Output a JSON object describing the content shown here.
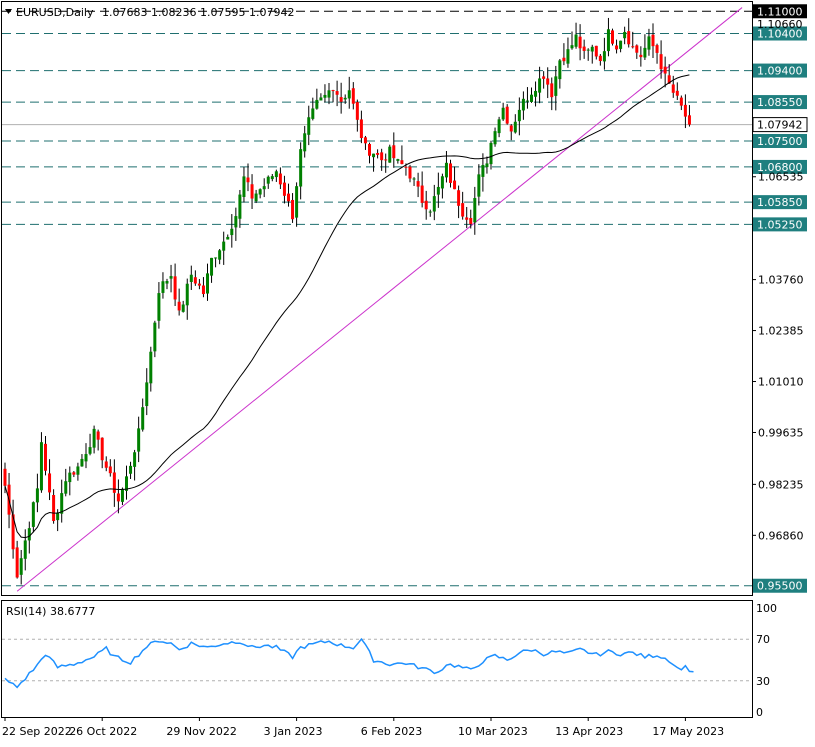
{
  "header": {
    "symbol": "EURUSD,Daily",
    "ohlc": "1.07683 1.08236 1.07595 1.07942"
  },
  "colors": {
    "bull": "#008000",
    "bear": "#ff0000",
    "wick": "#000000",
    "hline": "#1f6f6f",
    "label_bg": "#1f7f7f",
    "label_text": "#ffffff",
    "trendline": "#cc33cc",
    "ma": "#000000",
    "rsi": "#1e90ff",
    "frame": "#000000",
    "current_price_bg": "#ffffff"
  },
  "chart_data": [
    {
      "type": "candlestick",
      "title": "EURUSD,Daily",
      "ylim": [
        0.9525,
        1.1125
      ],
      "y_ticks": [
        "1.06535",
        "1.03760",
        "1.02385",
        "1.01010",
        "0.99635",
        "0.98235",
        "0.96860"
      ],
      "x_ticks": [
        {
          "index": 0,
          "label": "22 Sep 2022"
        },
        {
          "index": 24,
          "label": "26 Oct 2022"
        },
        {
          "index": 48,
          "label": "29 Nov 2022"
        },
        {
          "index": 72,
          "label": "3 Jan 2023"
        },
        {
          "index": 96,
          "label": "6 Feb 2023"
        },
        {
          "index": 120,
          "label": "10 Mar 2023"
        },
        {
          "index": 144,
          "label": "13 Apr 2023"
        },
        {
          "index": 168,
          "label": "17 May 2023"
        }
      ],
      "horizontal_levels": [
        {
          "price": 1.11,
          "label": "1.11000",
          "highlight": true
        },
        {
          "price": 1.104,
          "label": "1.10400"
        },
        {
          "price": 1.094,
          "label": "1.09400"
        },
        {
          "price": 1.0855,
          "label": "1.08550"
        },
        {
          "price": 1.075,
          "label": "1.07500"
        },
        {
          "price": 1.068,
          "label": "1.06800"
        },
        {
          "price": 1.0585,
          "label": "1.05850"
        },
        {
          "price": 1.0525,
          "label": "1.05250"
        },
        {
          "price": 0.955,
          "label": "0.95500"
        }
      ],
      "current_price": {
        "price": 1.07942,
        "label": "1.07942"
      },
      "hidden_label": "1.10660",
      "trendline": {
        "from": {
          "index": 3,
          "price": 0.9535
        },
        "to": {
          "index": 182,
          "price": 1.111
        }
      },
      "anchors": [
        {
          "i": 0,
          "c": 0.982
        },
        {
          "i": 3,
          "c": 0.958
        },
        {
          "i": 8,
          "c": 0.981
        },
        {
          "i": 9,
          "c": 0.994
        },
        {
          "i": 12,
          "c": 0.972
        },
        {
          "i": 15,
          "c": 0.984
        },
        {
          "i": 18,
          "c": 0.987
        },
        {
          "i": 22,
          "c": 0.996
        },
        {
          "i": 26,
          "c": 0.984
        },
        {
          "i": 28,
          "c": 0.978
        },
        {
          "i": 30,
          "c": 0.984
        },
        {
          "i": 33,
          "c": 0.996
        },
        {
          "i": 36,
          "c": 1.018
        },
        {
          "i": 38,
          "c": 1.035
        },
        {
          "i": 41,
          "c": 1.039
        },
        {
          "i": 43,
          "c": 1.028
        },
        {
          "i": 46,
          "c": 1.039
        },
        {
          "i": 49,
          "c": 1.034
        },
        {
          "i": 51,
          "c": 1.043
        },
        {
          "i": 54,
          "c": 1.048
        },
        {
          "i": 57,
          "c": 1.055
        },
        {
          "i": 59,
          "c": 1.065
        },
        {
          "i": 61,
          "c": 1.06
        },
        {
          "i": 64,
          "c": 1.063
        },
        {
          "i": 67,
          "c": 1.067
        },
        {
          "i": 69,
          "c": 1.061
        },
        {
          "i": 71,
          "c": 1.055
        },
        {
          "i": 73,
          "c": 1.072
        },
        {
          "i": 75,
          "c": 1.08
        },
        {
          "i": 77,
          "c": 1.085
        },
        {
          "i": 79,
          "c": 1.087
        },
        {
          "i": 81,
          "c": 1.09
        },
        {
          "i": 83,
          "c": 1.086
        },
        {
          "i": 85,
          "c": 1.089
        },
        {
          "i": 87,
          "c": 1.08
        },
        {
          "i": 89,
          "c": 1.073
        },
        {
          "i": 91,
          "c": 1.072
        },
        {
          "i": 93,
          "c": 1.07
        },
        {
          "i": 95,
          "c": 1.072
        },
        {
          "i": 97,
          "c": 1.069
        },
        {
          "i": 99,
          "c": 1.068
        },
        {
          "i": 101,
          "c": 1.064
        },
        {
          "i": 103,
          "c": 1.059
        },
        {
          "i": 105,
          "c": 1.057
        },
        {
          "i": 107,
          "c": 1.062
        },
        {
          "i": 109,
          "c": 1.068
        },
        {
          "i": 111,
          "c": 1.061
        },
        {
          "i": 113,
          "c": 1.056
        },
        {
          "i": 115,
          "c": 1.054
        },
        {
          "i": 117,
          "c": 1.065
        },
        {
          "i": 119,
          "c": 1.07
        },
        {
          "i": 121,
          "c": 1.079
        },
        {
          "i": 123,
          "c": 1.084
        },
        {
          "i": 125,
          "c": 1.078
        },
        {
          "i": 127,
          "c": 1.084
        },
        {
          "i": 129,
          "c": 1.087
        },
        {
          "i": 131,
          "c": 1.09
        },
        {
          "i": 133,
          "c": 1.093
        },
        {
          "i": 135,
          "c": 1.088
        },
        {
          "i": 137,
          "c": 1.097
        },
        {
          "i": 139,
          "c": 1.099
        },
        {
          "i": 141,
          "c": 1.103
        },
        {
          "i": 143,
          "c": 1.098
        },
        {
          "i": 145,
          "c": 1.1
        },
        {
          "i": 147,
          "c": 1.097
        },
        {
          "i": 149,
          "c": 1.104
        },
        {
          "i": 151,
          "c": 1.101
        },
        {
          "i": 153,
          "c": 1.105
        },
        {
          "i": 155,
          "c": 1.1
        },
        {
          "i": 157,
          "c": 1.098
        },
        {
          "i": 159,
          "c": 1.102
        },
        {
          "i": 161,
          "c": 1.099
        },
        {
          "i": 163,
          "c": 1.092
        },
        {
          "i": 165,
          "c": 1.088
        },
        {
          "i": 167,
          "c": 1.084
        },
        {
          "i": 169,
          "c": 1.0794
        }
      ]
    },
    {
      "type": "line",
      "title": "RSI(14) 38.6777",
      "ylim": [
        0,
        100
      ],
      "y_ticks": [
        "100",
        "70",
        "30",
        "0"
      ],
      "levels": [
        70,
        30
      ],
      "anchors": [
        {
          "i": 0,
          "v": 31
        },
        {
          "i": 3,
          "v": 24
        },
        {
          "i": 8,
          "v": 45
        },
        {
          "i": 10,
          "v": 56
        },
        {
          "i": 13,
          "v": 43
        },
        {
          "i": 17,
          "v": 46
        },
        {
          "i": 22,
          "v": 53
        },
        {
          "i": 25,
          "v": 61
        },
        {
          "i": 27,
          "v": 53
        },
        {
          "i": 31,
          "v": 48
        },
        {
          "i": 35,
          "v": 63
        },
        {
          "i": 38,
          "v": 69
        },
        {
          "i": 41,
          "v": 66
        },
        {
          "i": 43,
          "v": 60
        },
        {
          "i": 46,
          "v": 66
        },
        {
          "i": 50,
          "v": 62
        },
        {
          "i": 54,
          "v": 66
        },
        {
          "i": 58,
          "v": 68
        },
        {
          "i": 61,
          "v": 62
        },
        {
          "i": 64,
          "v": 64
        },
        {
          "i": 67,
          "v": 62
        },
        {
          "i": 71,
          "v": 53
        },
        {
          "i": 73,
          "v": 62
        },
        {
          "i": 77,
          "v": 66
        },
        {
          "i": 80,
          "v": 68
        },
        {
          "i": 83,
          "v": 64
        },
        {
          "i": 86,
          "v": 62
        },
        {
          "i": 88,
          "v": 70
        },
        {
          "i": 91,
          "v": 50
        },
        {
          "i": 95,
          "v": 46
        },
        {
          "i": 99,
          "v": 47
        },
        {
          "i": 103,
          "v": 42
        },
        {
          "i": 107,
          "v": 38
        },
        {
          "i": 109,
          "v": 46
        },
        {
          "i": 112,
          "v": 44
        },
        {
          "i": 115,
          "v": 40
        },
        {
          "i": 118,
          "v": 49
        },
        {
          "i": 121,
          "v": 54
        },
        {
          "i": 124,
          "v": 50
        },
        {
          "i": 127,
          "v": 57
        },
        {
          "i": 130,
          "v": 60
        },
        {
          "i": 133,
          "v": 56
        },
        {
          "i": 136,
          "v": 58
        },
        {
          "i": 139,
          "v": 56
        },
        {
          "i": 142,
          "v": 60
        },
        {
          "i": 146,
          "v": 55
        },
        {
          "i": 149,
          "v": 58
        },
        {
          "i": 152,
          "v": 56
        },
        {
          "i": 155,
          "v": 57
        },
        {
          "i": 158,
          "v": 53
        },
        {
          "i": 161,
          "v": 55
        },
        {
          "i": 164,
          "v": 50
        },
        {
          "i": 166,
          "v": 42
        },
        {
          "i": 168,
          "v": 43
        },
        {
          "i": 170,
          "v": 38.6777
        }
      ]
    }
  ]
}
